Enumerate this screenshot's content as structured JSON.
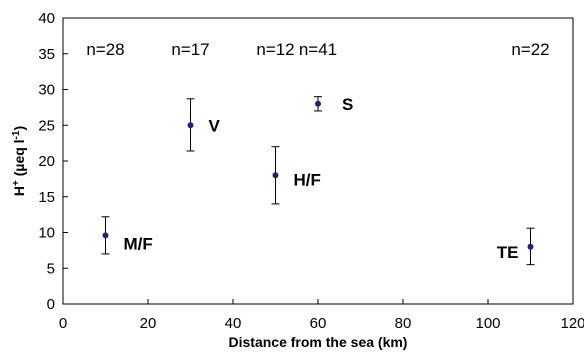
{
  "chart_data": {
    "type": "scatter",
    "xlabel": "Distance from the sea (km)",
    "ylabel_main": "H",
    "ylabel_sup": "+",
    "ylabel_unit": " (µeq l",
    "ylabel_unit_sup": "-1",
    "ylabel_close": ")",
    "xlim": [
      0,
      120
    ],
    "ylim": [
      0,
      40
    ],
    "xticks": [
      0,
      20,
      40,
      60,
      80,
      100,
      120
    ],
    "yticks": [
      0,
      5,
      10,
      15,
      20,
      25,
      30,
      35,
      40
    ],
    "grid": false,
    "marker_color": "#1a237e",
    "points": [
      {
        "label": "M/F",
        "n": "n=28",
        "x": 10,
        "y": 9.6,
        "err_low": 7.0,
        "err_high": 12.2
      },
      {
        "label": "V",
        "n": "n=17",
        "x": 30,
        "y": 25.0,
        "err_low": 21.4,
        "err_high": 28.7
      },
      {
        "label": "H/F",
        "n": "n=12",
        "x": 50,
        "y": 18.0,
        "err_low": 14.0,
        "err_high": 22.0
      },
      {
        "label": "S",
        "n": "n=41",
        "x": 60,
        "y": 28.0,
        "err_low": 27.0,
        "err_high": 29.0
      },
      {
        "label": "TE",
        "n": "n=22",
        "x": 110,
        "y": 8.0,
        "err_low": 5.5,
        "err_high": 10.6
      }
    ]
  }
}
